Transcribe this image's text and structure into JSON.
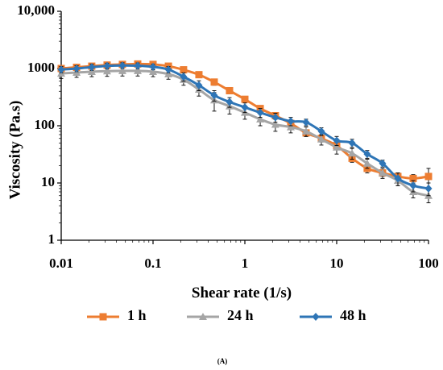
{
  "chart_data": {
    "type": "line",
    "xlabel": "Shear rate (1/s)",
    "ylabel": "Viscosity (Pa.s)",
    "x_scale": "log",
    "y_scale": "log",
    "xlim": [
      0.01,
      100
    ],
    "ylim": [
      1,
      10000
    ],
    "x_ticks": [
      0.01,
      0.1,
      1,
      10,
      100
    ],
    "x_tick_labels": [
      "0.01",
      "0.1",
      "1",
      "10",
      "100"
    ],
    "y_ticks": [
      1,
      10,
      100,
      1000,
      10000
    ],
    "y_tick_labels": [
      "1",
      "10",
      "100",
      "1000",
      "10,000"
    ],
    "grid": false,
    "legend_position": "bottom",
    "caption": "(A)",
    "series": [
      {
        "name": "1 h",
        "color": "#ED7D31",
        "marker": "square",
        "x": [
          0.01,
          0.0147,
          0.0215,
          0.0316,
          0.0464,
          0.0681,
          0.1,
          0.147,
          0.215,
          0.316,
          0.464,
          0.681,
          1,
          1.47,
          2.15,
          3.16,
          4.64,
          6.81,
          10,
          14.7,
          21.5,
          31.6,
          46.4,
          68.1,
          100
        ],
        "y": [
          1000,
          1050,
          1100,
          1150,
          1180,
          1200,
          1180,
          1100,
          950,
          780,
          580,
          410,
          290,
          200,
          150,
          110,
          75,
          60,
          45,
          27,
          18,
          15,
          13,
          12,
          13
        ],
        "error": [
          100,
          100,
          100,
          110,
          110,
          110,
          110,
          110,
          100,
          90,
          70,
          50,
          35,
          25,
          20,
          15,
          10,
          8,
          6,
          4,
          3,
          2,
          2,
          2,
          5
        ]
      },
      {
        "name": "24 h",
        "color": "#A5A5A5",
        "marker": "triangle",
        "x": [
          0.01,
          0.0147,
          0.0215,
          0.0316,
          0.0464,
          0.0681,
          0.1,
          0.147,
          0.215,
          0.316,
          0.464,
          0.681,
          1,
          1.47,
          2.15,
          3.16,
          4.64,
          6.81,
          10,
          14.7,
          21.5,
          31.6,
          46.4,
          68.1,
          100
        ],
        "y": [
          820,
          850,
          880,
          900,
          910,
          910,
          880,
          800,
          640,
          430,
          280,
          220,
          170,
          130,
          105,
          95,
          80,
          58,
          42,
          33,
          22,
          15,
          11,
          7,
          6
        ],
        "error": [
          150,
          150,
          160,
          170,
          170,
          170,
          160,
          150,
          130,
          100,
          100,
          60,
          40,
          30,
          25,
          20,
          15,
          12,
          10,
          7,
          4,
          3,
          2,
          1.5,
          1.5
        ]
      },
      {
        "name": "48 h",
        "color": "#2E75B6",
        "marker": "diamond",
        "x": [
          0.01,
          0.0147,
          0.0215,
          0.0316,
          0.0464,
          0.0681,
          0.1,
          0.147,
          0.215,
          0.316,
          0.464,
          0.681,
          1,
          1.47,
          2.15,
          3.16,
          4.64,
          6.81,
          10,
          14.7,
          21.5,
          31.6,
          46.4,
          68.1,
          100
        ],
        "y": [
          960,
          1000,
          1060,
          1110,
          1130,
          1120,
          1070,
          960,
          720,
          510,
          340,
          260,
          210,
          170,
          140,
          120,
          115,
          80,
          55,
          50,
          32,
          22,
          12,
          9,
          8
        ],
        "error": [
          120,
          120,
          130,
          130,
          130,
          130,
          120,
          120,
          120,
          100,
          70,
          50,
          40,
          30,
          25,
          20,
          15,
          12,
          10,
          8,
          5,
          3,
          3,
          2,
          2
        ]
      }
    ]
  }
}
